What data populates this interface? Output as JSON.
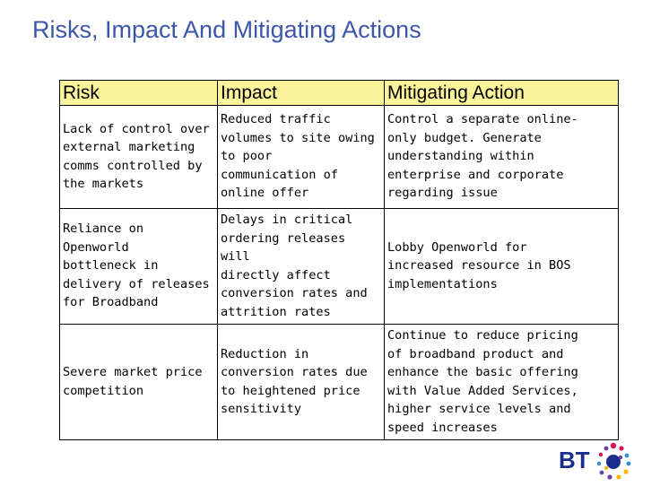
{
  "slide": {
    "title": "Risks, Impact And Mitigating Actions"
  },
  "table": {
    "headers": [
      "Risk",
      "Impact",
      "Mitigating Action"
    ],
    "rows": [
      [
        "Lack of control over\nexternal marketing\ncomms controlled by\nthe markets",
        "Reduced traffic\nvolumes to site owing\nto poor\ncommunication of\nonline offer",
        "Control a separate online-\nonly budget.  Generate\nunderstanding within\nenterprise and corporate\nregarding issue"
      ],
      [
        "Reliance on\nOpenworld\nbottleneck in\ndelivery of releases\nfor Broadband",
        "Delays in critical\nordering releases will\ndirectly affect\nconversion rates and\nattrition rates",
        "Lobby Openworld for\nincreased resource in BOS\nimplementations"
      ],
      [
        "Severe market price\ncompetition",
        "Reduction in\nconversion rates due\nto heightened price\nsensitivity",
        "Continue to reduce pricing\nof broadband product and\nenhance the basic offering\nwith Value Added Services,\nhigher service levels and\nspeed increases"
      ]
    ]
  },
  "logo": {
    "text": "BT",
    "text_color": "#1a2e8c",
    "globe_colors": [
      "#1a2e8c",
      "#d4145a",
      "#6c3fa0",
      "#2a8fd6",
      "#f5b400"
    ]
  }
}
